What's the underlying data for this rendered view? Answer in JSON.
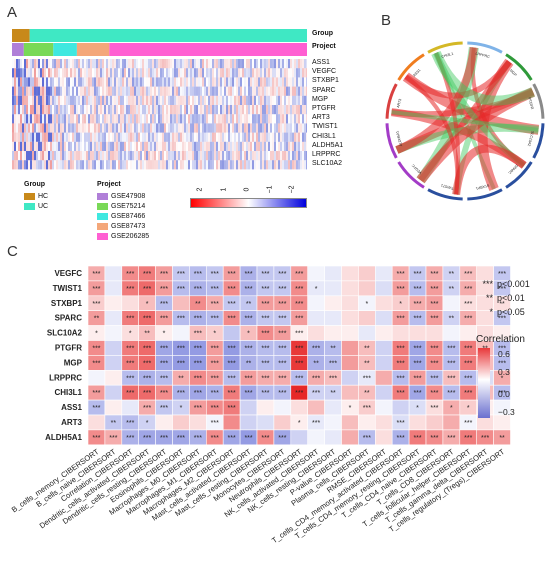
{
  "panels": {
    "a": "A",
    "b": "B",
    "c": "C"
  },
  "heatmap": {
    "top_annotations": [
      "Group",
      "Project"
    ],
    "genes": [
      "ASS1",
      "VEGFC",
      "STXBP1",
      "SPARC",
      "MGP",
      "PTGFR",
      "ART3",
      "TWIST1",
      "CHI3L1",
      "ALDH5A1",
      "LRPPRC",
      "SLC10A2"
    ],
    "group_segments": [
      {
        "label": "HC",
        "frac": 0.06,
        "color": "#c8891a"
      },
      {
        "label": "UC",
        "frac": 0.94,
        "color": "#3fe8c4"
      }
    ],
    "project_segments": [
      {
        "label": "GSE47908",
        "frac": 0.04,
        "color": "#b07fd8"
      },
      {
        "label": "GSE75214",
        "frac": 0.1,
        "color": "#79d957"
      },
      {
        "label": "GSE87466",
        "frac": 0.08,
        "color": "#3fe8e0"
      },
      {
        "label": "GSE87473",
        "frac": 0.11,
        "color": "#f4a77a"
      },
      {
        "label": "GSE206285",
        "frac": 0.67,
        "color": "#ff5fd2"
      }
    ],
    "legend_group_title": "Group",
    "legend_group": [
      {
        "label": "HC",
        "color": "#c8891a"
      },
      {
        "label": "UC",
        "color": "#3fe8c4"
      }
    ],
    "legend_project_title": "Project",
    "legend_project": [
      {
        "label": "GSE47908",
        "color": "#b07fd8"
      },
      {
        "label": "GSE75214",
        "color": "#79d957"
      },
      {
        "label": "GSE87466",
        "color": "#3fe8e0"
      },
      {
        "label": "GSE87473",
        "color": "#f4a77a"
      },
      {
        "label": "GSE206285",
        "color": "#ff5fd2"
      }
    ],
    "scale_ticks": [
      "2",
      "1",
      "0",
      "−1",
      "−2"
    ]
  },
  "chord": {
    "labels": [
      "LRPPRC",
      "MGP",
      "PTGFR",
      "SLC10A2",
      "SPARC",
      "STXBP1",
      "TWIST1",
      "VEGFC",
      "ALDH5A1",
      "ART3",
      "ASS1",
      "CHI3L1"
    ],
    "colors": [
      "#7fb3e8",
      "#2f9a3a",
      "#8a8a8a",
      "#2a4f9e",
      "#2a4f9e",
      "#2a4f9e",
      "#2a4f9e",
      "#a33cc7",
      "#a33cc7",
      "#d94040",
      "#f07d1f",
      "#d4b826"
    ]
  },
  "chart_data": {
    "type": "heatmap",
    "title": "",
    "xlabel": "",
    "ylabel": "",
    "rows": [
      "VEGFC",
      "TWIST1",
      "STXBP1",
      "SPARC",
      "SLC10A2",
      "PTGFR",
      "MGP",
      "LRPPRC",
      "CHI3L1",
      "ASS1",
      "ART3",
      "ALDH5A1"
    ],
    "columns": [
      "B_cells_memory_CIBERSORT",
      "B_cells_naive_CIBERSORT",
      "Correlation_CIBERSORT",
      "Dendritic_cells_activated_CIBERSORT",
      "Dendritic_cells_resting_CIBERSORT",
      "Eosinophils_CIBERSORT",
      "Macrophages_M0_CIBERSORT",
      "Macrophages_M1_CIBERSORT",
      "Macrophages_M2_CIBERSORT",
      "Mast_cells_activated_CIBERSORT",
      "Mast_cells_resting_CIBERSORT",
      "Monocytes_CIBERSORT",
      "Neutrophils_CIBERSORT",
      "NK_cells_activated_CIBERSORT",
      "NK_cells_resting_CIBERSORT",
      "P-value_CIBERSORT",
      "Plasma_cells_CIBERSORT",
      "RMSE_CIBERSORT",
      "T_cells_CD4_memory_activated_CIBERSORT",
      "T_cells_CD4_memory_resting_CIBERSORT",
      "T_cells_CD4_naive_CIBERSORT",
      "T_cells_CD8_CIBERSORT",
      "T_cells_follicular_helper_CIBERSORT",
      "T_cells_gamma_delta_CIBERSORT",
      "T_cells_regulatory_(Tregs)_CIBERSORT"
    ],
    "values": [
      [
        0.25,
        -0.1,
        0.35,
        0.4,
        0.3,
        -0.25,
        -0.3,
        -0.25,
        0.3,
        -0.35,
        -0.25,
        -0.25,
        0.3,
        -0.05,
        -0.1,
        0.1,
        0.15,
        -0.1,
        0.25,
        -0.25,
        0.25,
        -0.2,
        0.2,
        0.1,
        -0.25
      ],
      [
        0.3,
        -0.1,
        0.4,
        0.45,
        0.3,
        -0.3,
        -0.35,
        -0.3,
        0.35,
        -0.35,
        -0.25,
        -0.25,
        0.35,
        -0.1,
        -0.1,
        0.1,
        0.15,
        -0.15,
        0.3,
        -0.3,
        0.3,
        -0.2,
        0.25,
        0.1,
        -0.25
      ],
      [
        0.15,
        0.05,
        0.1,
        0.2,
        -0.3,
        0.2,
        0.35,
        0.25,
        -0.25,
        -0.25,
        0.3,
        0.3,
        0.35,
        -0.05,
        0.05,
        0.1,
        -0.05,
        0.1,
        0.15,
        0.25,
        0.3,
        -0.05,
        0.1,
        0.1,
        0.1
      ],
      [
        0.3,
        -0.1,
        0.4,
        0.45,
        0.3,
        -0.3,
        -0.35,
        -0.3,
        0.35,
        -0.35,
        -0.25,
        -0.25,
        0.3,
        -0.1,
        -0.1,
        0.1,
        0.15,
        -0.15,
        0.3,
        -0.3,
        0.3,
        -0.2,
        0.25,
        0.1,
        -0.25
      ],
      [
        0.05,
        -0.05,
        0.1,
        0.2,
        0.05,
        -0.05,
        0.2,
        0.15,
        -0.25,
        0.2,
        0.35,
        0.3,
        0.05,
        0.1,
        0.05,
        0.05,
        -0.1,
        0.05,
        0.1,
        0.1,
        0.1,
        -0.05,
        0.05,
        0.1,
        0.05
      ],
      [
        0.35,
        -0.2,
        0.4,
        0.45,
        -0.4,
        -0.45,
        -0.45,
        0.3,
        -0.45,
        -0.35,
        -0.3,
        -0.3,
        0.6,
        -0.35,
        -0.3,
        0.3,
        0.2,
        -0.2,
        0.4,
        -0.4,
        0.35,
        -0.3,
        0.4,
        0.2,
        -0.3
      ],
      [
        0.35,
        -0.2,
        0.4,
        0.45,
        -0.4,
        -0.45,
        -0.45,
        0.3,
        -0.45,
        -0.35,
        -0.3,
        -0.3,
        0.6,
        -0.35,
        -0.3,
        0.3,
        0.2,
        -0.2,
        0.4,
        -0.4,
        0.35,
        -0.3,
        0.4,
        0.2,
        -0.3
      ],
      [
        -0.05,
        0.05,
        -0.3,
        -0.35,
        -0.3,
        0.25,
        0.35,
        0.3,
        -0.3,
        0.3,
        0.25,
        0.25,
        -0.3,
        0.25,
        0.2,
        -0.2,
        -0.1,
        0.25,
        -0.3,
        0.3,
        -0.3,
        0.2,
        -0.3,
        -0.15,
        0.25
      ],
      [
        0.3,
        -0.2,
        0.45,
        0.45,
        0.35,
        -0.35,
        -0.4,
        -0.35,
        0.4,
        -0.4,
        -0.3,
        -0.3,
        0.65,
        -0.2,
        -0.2,
        0.2,
        0.2,
        -0.2,
        0.4,
        -0.4,
        0.35,
        -0.3,
        0.4,
        0.2,
        -0.3
      ],
      [
        -0.3,
        0.05,
        -0.1,
        0.25,
        -0.25,
        -0.2,
        0.3,
        0.35,
        0.4,
        -0.2,
        0.05,
        -0.05,
        0.1,
        0.2,
        -0.1,
        0.05,
        0.15,
        -0.05,
        -0.2,
        -0.15,
        0.1,
        0.25,
        0.15,
        0.05,
        -0.05
      ],
      [
        0.1,
        -0.25,
        -0.3,
        -0.2,
        0.05,
        0.15,
        0.1,
        -0.05,
        0.35,
        -0.2,
        -0.15,
        0.15,
        0.05,
        -0.1,
        -0.05,
        0.2,
        0.05,
        0.1,
        -0.15,
        0.1,
        0.15,
        0.25,
        -0.05,
        0.1,
        0.05
      ],
      [
        0.35,
        0.25,
        -0.35,
        -0.4,
        -0.4,
        -0.4,
        -0.35,
        0.35,
        -0.4,
        -0.45,
        0.35,
        -0.4,
        -0.2,
        -0.05,
        -0.1,
        0.25,
        -0.3,
        0.1,
        -0.35,
        0.4,
        0.35,
        0.25,
        0.4,
        0.35,
        0.3
      ]
    ],
    "stars": [
      [
        "***",
        "",
        "***",
        "***",
        "***",
        "***",
        "***",
        "***",
        "***",
        "***",
        "***",
        "***",
        "***",
        "",
        "",
        "",
        "",
        "",
        "***",
        "***",
        "***",
        "**",
        "***",
        "",
        "***"
      ],
      [
        "***",
        "",
        "***",
        "***",
        "***",
        "***",
        "***",
        "***",
        "***",
        "***",
        "***",
        "***",
        "***",
        "*",
        "",
        "",
        "",
        "",
        "***",
        "***",
        "***",
        "**",
        "***",
        "",
        "***"
      ],
      [
        "***",
        "",
        "",
        "*",
        "***",
        "",
        "**",
        "***",
        "***",
        "**",
        "***",
        "***",
        "***",
        "",
        "",
        "",
        "*",
        "",
        "*",
        "***",
        "***",
        "",
        "***",
        "",
        "**"
      ],
      [
        "**",
        "",
        "***",
        "***",
        "***",
        "***",
        "***",
        "***",
        "***",
        "***",
        "***",
        "***",
        "***",
        "",
        "",
        "",
        "",
        "",
        "***",
        "***",
        "***",
        "**",
        "***",
        "",
        "***"
      ],
      [
        "*",
        "",
        "*",
        "**",
        "*",
        "",
        "***",
        "*",
        "",
        "*",
        "***",
        "***",
        "***",
        "",
        "",
        "",
        "",
        "",
        "",
        "",
        "",
        "",
        "",
        "",
        ""
      ],
      [
        "***",
        "",
        "***",
        "***",
        "***",
        "***",
        "***",
        "***",
        "***",
        "***",
        "***",
        "***",
        "***",
        "***",
        "**",
        "",
        "**",
        "",
        "***",
        "***",
        "***",
        "***",
        "***",
        "**",
        "***"
      ],
      [
        "***",
        "",
        "***",
        "***",
        "***",
        "***",
        "***",
        "***",
        "***",
        "**",
        "***",
        "***",
        "***",
        "**",
        "***",
        "",
        "**",
        "",
        "***",
        "***",
        "***",
        "***",
        "***",
        "**",
        "***"
      ],
      [
        "",
        "",
        "***",
        "***",
        "***",
        "**",
        "***",
        "***",
        "***",
        "***",
        "***",
        "***",
        "***",
        "***",
        "***",
        "",
        "***",
        "",
        "***",
        "***",
        "***",
        "***",
        "***",
        "*",
        "*"
      ],
      [
        "***",
        "",
        "***",
        "***",
        "***",
        "***",
        "***",
        "***",
        "***",
        "***",
        "***",
        "***",
        "***",
        "***",
        "**",
        "",
        "**",
        "",
        "***",
        "***",
        "***",
        "***",
        "***",
        "**",
        "***"
      ],
      [
        "***",
        "",
        "",
        "***",
        "***",
        "*",
        "***",
        "***",
        "***",
        "",
        "",
        "",
        "",
        "",
        "",
        "*",
        "***",
        "",
        "",
        "*",
        "***",
        "*",
        "*",
        "",
        ""
      ],
      [
        "",
        "**",
        "***",
        "*",
        "",
        "",
        "",
        "***",
        "",
        "",
        "",
        "",
        "*",
        "***",
        "",
        "",
        "",
        "",
        "***",
        "",
        "",
        "",
        "***",
        "",
        ""
      ],
      [
        "***",
        "***",
        "***",
        "***",
        "***",
        "***",
        "***",
        "***",
        "***",
        "***",
        "***",
        "***",
        "",
        "",
        "",
        "",
        "***",
        "",
        "***",
        "***",
        "***",
        "***",
        "***",
        "***",
        "**"
      ]
    ],
    "colorbar": {
      "title": "Correlation",
      "ticks": [
        "0.6",
        "0.3",
        "0.0",
        "−0.3"
      ]
    },
    "significance_legend": [
      {
        "stars": "***",
        "text": "p<0.001"
      },
      {
        "stars": "**",
        "text": "p<0.01"
      },
      {
        "stars": "*",
        "text": "p<0.05"
      }
    ]
  }
}
